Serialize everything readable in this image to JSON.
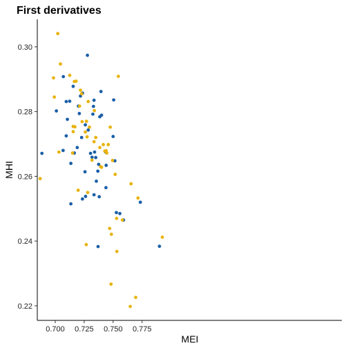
{
  "chart_data": {
    "type": "scatter",
    "title": "First derivatives",
    "xlabel": "MEI",
    "ylabel": "MHI",
    "xlim": [
      0.6845,
      0.9475
    ],
    "ylim": [
      0.2155,
      0.3085
    ],
    "xticks": [
      0.7,
      0.725,
      0.75,
      0.775
    ],
    "xtick_labels": [
      "0.700",
      "0.725",
      "0.750",
      "0.775"
    ],
    "yticks": [
      0.22,
      0.24,
      0.26,
      0.28,
      0.3
    ],
    "ytick_labels": [
      "0.22",
      "0.24",
      "0.26",
      "0.28",
      "0.30"
    ],
    "grid": false,
    "legend": "none",
    "series": [
      {
        "color": "#1a5fa8",
        "points": [
          [
            0.6885,
            0.2671
          ],
          [
            0.701,
            0.2802
          ],
          [
            0.707,
            0.2908
          ],
          [
            0.7068,
            0.268
          ],
          [
            0.7095,
            0.2831
          ],
          [
            0.7095,
            0.2725
          ],
          [
            0.7105,
            0.2776
          ],
          [
            0.7125,
            0.2832
          ],
          [
            0.7135,
            0.264
          ],
          [
            0.7135,
            0.2515
          ],
          [
            0.7155,
            0.2878
          ],
          [
            0.7165,
            0.2672
          ],
          [
            0.719,
            0.2689
          ],
          [
            0.72,
            0.2817
          ],
          [
            0.7208,
            0.2794
          ],
          [
            0.7218,
            0.2848
          ],
          [
            0.7228,
            0.272
          ],
          [
            0.7236,
            0.2857
          ],
          [
            0.7235,
            0.253
          ],
          [
            0.7257,
            0.2614
          ],
          [
            0.726,
            0.2759
          ],
          [
            0.7262,
            0.2538
          ],
          [
            0.7278,
            0.2974
          ],
          [
            0.7285,
            0.2743
          ],
          [
            0.7305,
            0.2671
          ],
          [
            0.7318,
            0.2659
          ],
          [
            0.7325,
            0.2792
          ],
          [
            0.733,
            0.2816
          ],
          [
            0.7335,
            0.2835
          ],
          [
            0.7335,
            0.2543
          ],
          [
            0.734,
            0.2675
          ],
          [
            0.735,
            0.2658
          ],
          [
            0.7355,
            0.2585
          ],
          [
            0.737,
            0.2383
          ],
          [
            0.7368,
            0.2616
          ],
          [
            0.7375,
            0.2637
          ],
          [
            0.738,
            0.2537
          ],
          [
            0.7385,
            0.2784
          ],
          [
            0.7395,
            0.2862
          ],
          [
            0.74,
            0.2789
          ],
          [
            0.7435,
            0.2675
          ],
          [
            0.7438,
            0.2565
          ],
          [
            0.744,
            0.2634
          ],
          [
            0.75,
            0.2723
          ],
          [
            0.7505,
            0.2836
          ],
          [
            0.7515,
            0.2648
          ],
          [
            0.7528,
            0.2488
          ],
          [
            0.7558,
            0.2485
          ],
          [
            0.759,
            0.2465
          ],
          [
            0.7735,
            0.252
          ],
          [
            0.79,
            0.2384
          ]
        ]
      },
      {
        "color": "#e8b30c",
        "points": [
          [
            0.687,
            0.2593
          ],
          [
            0.6985,
            0.2904
          ],
          [
            0.6992,
            0.2845
          ],
          [
            0.7022,
            0.3041
          ],
          [
            0.7032,
            0.2675
          ],
          [
            0.7045,
            0.2947
          ],
          [
            0.7125,
            0.2912
          ],
          [
            0.715,
            0.2672
          ],
          [
            0.7155,
            0.2738
          ],
          [
            0.7155,
            0.2754
          ],
          [
            0.7165,
            0.2893
          ],
          [
            0.717,
            0.2753
          ],
          [
            0.718,
            0.2894
          ],
          [
            0.721,
            0.2817
          ],
          [
            0.7198,
            0.2557
          ],
          [
            0.7218,
            0.2866
          ],
          [
            0.7228,
            0.2855
          ],
          [
            0.7232,
            0.2769
          ],
          [
            0.726,
            0.2737
          ],
          [
            0.727,
            0.277
          ],
          [
            0.7268,
            0.2389
          ],
          [
            0.7275,
            0.2722
          ],
          [
            0.728,
            0.255
          ],
          [
            0.7285,
            0.2831
          ],
          [
            0.7295,
            0.2752
          ],
          [
            0.7318,
            0.265
          ],
          [
            0.7335,
            0.2707
          ],
          [
            0.7338,
            0.2803
          ],
          [
            0.735,
            0.272
          ],
          [
            0.7385,
            0.2689
          ],
          [
            0.7392,
            0.263
          ],
          [
            0.74,
            0.2628
          ],
          [
            0.7415,
            0.2698
          ],
          [
            0.7428,
            0.2678
          ],
          [
            0.744,
            0.2679
          ],
          [
            0.7445,
            0.2672
          ],
          [
            0.7458,
            0.2698
          ],
          [
            0.747,
            0.2439
          ],
          [
            0.7475,
            0.2752
          ],
          [
            0.7482,
            0.2267
          ],
          [
            0.7485,
            0.2421
          ],
          [
            0.7495,
            0.2649
          ],
          [
            0.7518,
            0.2606
          ],
          [
            0.753,
            0.247
          ],
          [
            0.7532,
            0.2368
          ],
          [
            0.7545,
            0.2909
          ],
          [
            0.758,
            0.2465
          ],
          [
            0.7648,
            0.2198
          ],
          [
            0.7655,
            0.2577
          ],
          [
            0.7695,
            0.2226
          ],
          [
            0.7715,
            0.2533
          ],
          [
            0.7925,
            0.2412
          ]
        ]
      }
    ]
  }
}
